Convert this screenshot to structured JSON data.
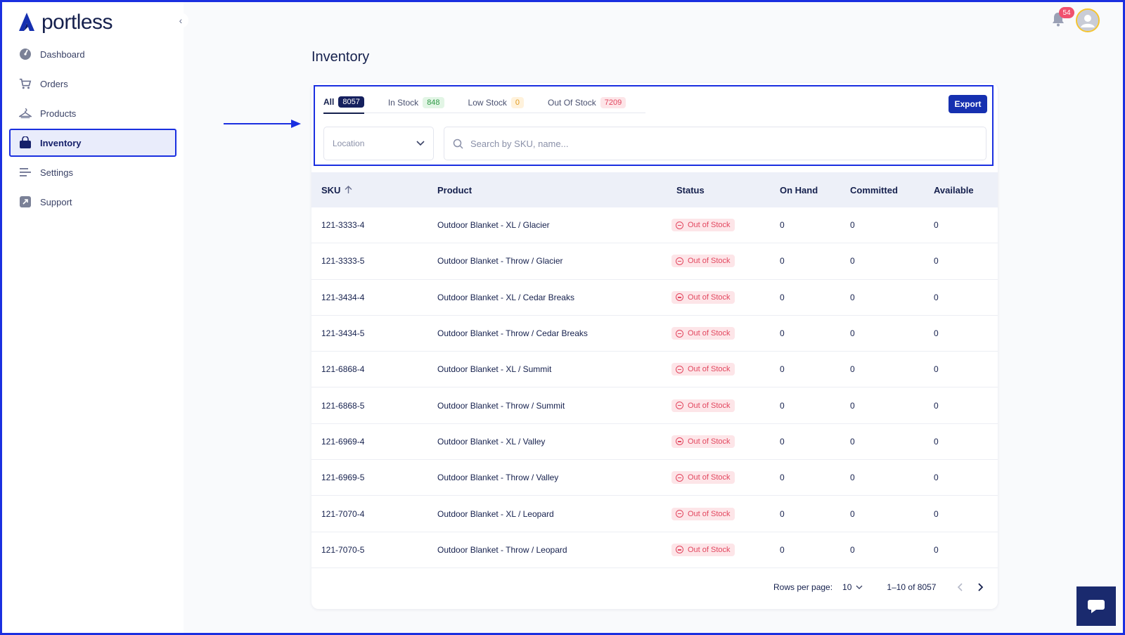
{
  "app": {
    "logo_text": "portless",
    "collapse_icon": "chevron-left-icon"
  },
  "sidebar": {
    "items": [
      {
        "label": "Dashboard",
        "icon": "gauge-icon"
      },
      {
        "label": "Orders",
        "icon": "cart-icon"
      },
      {
        "label": "Products",
        "icon": "hanger-icon"
      },
      {
        "label": "Inventory",
        "icon": "bag-icon",
        "active": true
      },
      {
        "label": "Settings",
        "icon": "sliders-icon"
      },
      {
        "label": "Support",
        "icon": "external-link-icon"
      }
    ]
  },
  "header": {
    "notification_count": "54",
    "bell_icon": "bell-icon",
    "avatar_icon": "user-avatar-icon"
  },
  "page": {
    "title": "Inventory"
  },
  "tabs": [
    {
      "label": "All",
      "count": "8057",
      "active": true
    },
    {
      "label": "In Stock",
      "count": "848"
    },
    {
      "label": "Low Stock",
      "count": "0"
    },
    {
      "label": "Out Of Stock",
      "count": "7209"
    }
  ],
  "toolbar": {
    "export_label": "Export",
    "location_placeholder": "Location",
    "search_placeholder": "Search by SKU, name..."
  },
  "table": {
    "headers": {
      "sku": "SKU",
      "product": "Product",
      "status": "Status",
      "on_hand": "On Hand",
      "committed": "Committed",
      "available": "Available"
    },
    "rows": [
      {
        "sku": "121-3333-4",
        "product": "Outdoor Blanket - XL / Glacier",
        "status": "Out of Stock",
        "on_hand": "0",
        "committed": "0",
        "available": "0"
      },
      {
        "sku": "121-3333-5",
        "product": "Outdoor Blanket - Throw / Glacier",
        "status": "Out of Stock",
        "on_hand": "0",
        "committed": "0",
        "available": "0"
      },
      {
        "sku": "121-3434-4",
        "product": "Outdoor Blanket - XL / Cedar Breaks",
        "status": "Out of Stock",
        "on_hand": "0",
        "committed": "0",
        "available": "0"
      },
      {
        "sku": "121-3434-5",
        "product": "Outdoor Blanket - Throw / Cedar Breaks",
        "status": "Out of Stock",
        "on_hand": "0",
        "committed": "0",
        "available": "0"
      },
      {
        "sku": "121-6868-4",
        "product": "Outdoor Blanket - XL / Summit",
        "status": "Out of Stock",
        "on_hand": "0",
        "committed": "0",
        "available": "0"
      },
      {
        "sku": "121-6868-5",
        "product": "Outdoor Blanket - Throw / Summit",
        "status": "Out of Stock",
        "on_hand": "0",
        "committed": "0",
        "available": "0"
      },
      {
        "sku": "121-6969-4",
        "product": "Outdoor Blanket - XL / Valley",
        "status": "Out of Stock",
        "on_hand": "0",
        "committed": "0",
        "available": "0"
      },
      {
        "sku": "121-6969-5",
        "product": "Outdoor Blanket - Throw / Valley",
        "status": "Out of Stock",
        "on_hand": "0",
        "committed": "0",
        "available": "0"
      },
      {
        "sku": "121-7070-4",
        "product": "Outdoor Blanket - XL / Leopard",
        "status": "Out of Stock",
        "on_hand": "0",
        "committed": "0",
        "available": "0"
      },
      {
        "sku": "121-7070-5",
        "product": "Outdoor Blanket - Throw / Leopard",
        "status": "Out of Stock",
        "on_hand": "0",
        "committed": "0",
        "available": "0"
      }
    ]
  },
  "pagination": {
    "rows_per_page_label": "Rows per page:",
    "rows_per_page_value": "10",
    "range": "1–10 of 8057"
  },
  "colors": {
    "accent": "#1a2fe0",
    "primary_button": "#1630b0",
    "out_of_stock": "#e2475f",
    "in_stock": "#2f9a46",
    "low_stock": "#e19b20"
  }
}
